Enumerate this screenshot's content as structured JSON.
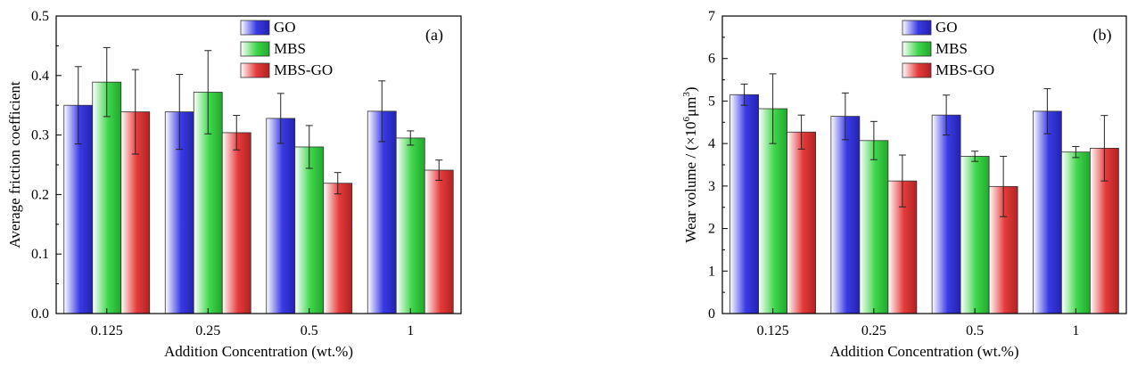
{
  "chart_data": [
    {
      "type": "bar",
      "panel_label": "(a)",
      "title": "",
      "xlabel": "Addition Concentration (wt.%)",
      "ylabel": "Average friction coefficient",
      "categories": [
        "0.125",
        "0.25",
        "0.5",
        "1"
      ],
      "ylim": [
        0,
        0.5
      ],
      "yticks": [
        "0.0",
        "0.1",
        "0.2",
        "0.3",
        "0.4",
        "0.5"
      ],
      "legend_position": "top-right",
      "series": [
        {
          "name": "GO",
          "values": [
            0.35,
            0.339,
            0.328,
            0.34
          ],
          "errors": [
            0.065,
            0.063,
            0.042,
            0.051
          ],
          "color": "#3a3ae6"
        },
        {
          "name": "MBS",
          "values": [
            0.389,
            0.372,
            0.28,
            0.295
          ],
          "errors": [
            0.058,
            0.07,
            0.036,
            0.012
          ],
          "color": "#3ed64a"
        },
        {
          "name": "MBS-GO",
          "values": [
            0.339,
            0.304,
            0.219,
            0.241
          ],
          "errors": [
            0.071,
            0.029,
            0.018,
            0.017
          ],
          "color": "#e63a3a"
        }
      ]
    },
    {
      "type": "bar",
      "panel_label": "(b)",
      "title": "",
      "xlabel": "Addition Concentration (wt.%)",
      "ylabel": "Wear volume / (×10",
      "ylabel_sup": "6",
      "ylabel_unit": "μm",
      "ylabel_sup2": "3",
      "ylabel_end": ")",
      "categories": [
        "0.125",
        "0.25",
        "0.5",
        "1"
      ],
      "ylim": [
        0,
        7
      ],
      "yticks": [
        "0",
        "1",
        "2",
        "3",
        "4",
        "5",
        "6",
        "7"
      ],
      "legend_position": "top-center",
      "series": [
        {
          "name": "GO",
          "values": [
            5.15,
            4.64,
            4.67,
            4.76
          ],
          "errors": [
            0.25,
            0.55,
            0.47,
            0.53
          ],
          "color": "#3a3ae6"
        },
        {
          "name": "MBS",
          "values": [
            4.82,
            4.07,
            3.7,
            3.8
          ],
          "errors": [
            0.82,
            0.45,
            0.12,
            0.13
          ],
          "color": "#3ed64a"
        },
        {
          "name": "MBS-GO",
          "values": [
            4.27,
            3.12,
            2.99,
            3.89
          ],
          "errors": [
            0.4,
            0.61,
            0.71,
            0.77
          ],
          "color": "#e63a3a"
        }
      ]
    }
  ]
}
